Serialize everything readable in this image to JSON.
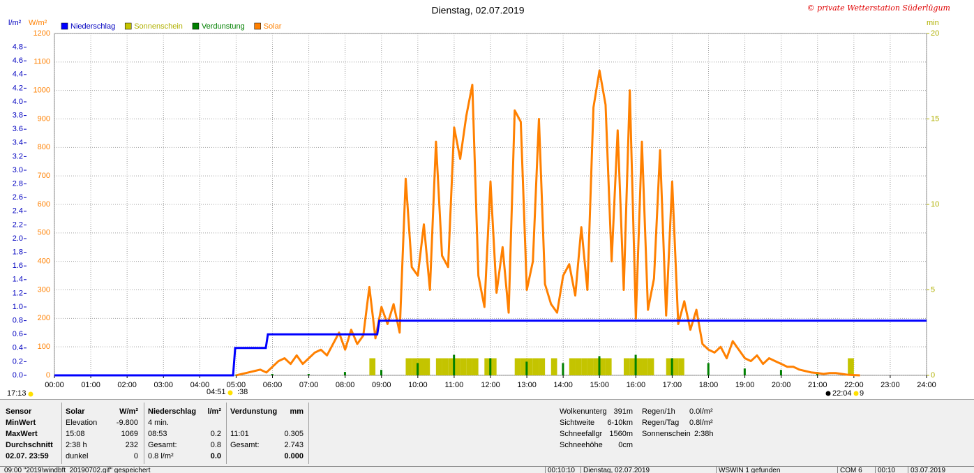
{
  "chart_data": {
    "type": "line",
    "title": "Dienstag, 02.07.2019",
    "credit": "© private Wetterstation Süderlügum",
    "ylabel": "W/m²",
    "y2label": "l/m²",
    "y3label": "min",
    "grid": true,
    "xlim": [
      0,
      24
    ],
    "xticks": [
      {
        "value": 0,
        "label": "00:00"
      },
      {
        "value": 1,
        "label": "01:00"
      },
      {
        "value": 2,
        "label": "02:00"
      },
      {
        "value": 3,
        "label": "03:00"
      },
      {
        "value": 4,
        "label": "04:00"
      },
      {
        "value": 5,
        "label": "05:00"
      },
      {
        "value": 6,
        "label": "06:00"
      },
      {
        "value": 7,
        "label": "07:00"
      },
      {
        "value": 8,
        "label": "08:00"
      },
      {
        "value": 9,
        "label": "09:00"
      },
      {
        "value": 10,
        "label": "10:00"
      },
      {
        "value": 11,
        "label": "11:00"
      },
      {
        "value": 12,
        "label": "12:00"
      },
      {
        "value": 13,
        "label": "13:00"
      },
      {
        "value": 14,
        "label": "14:00"
      },
      {
        "value": 15,
        "label": "15:00"
      },
      {
        "value": 16,
        "label": "16:00"
      },
      {
        "value": 17,
        "label": "17:00"
      },
      {
        "value": 18,
        "label": "18:00"
      },
      {
        "value": 19,
        "label": "19:00"
      },
      {
        "value": 20,
        "label": "20:00"
      },
      {
        "value": 21,
        "label": "21:00"
      },
      {
        "value": 22,
        "label": "22:00"
      },
      {
        "value": 23,
        "label": "23:00"
      },
      {
        "value": 24,
        "label": "24:00"
      }
    ],
    "ylim": [
      0,
      1200
    ],
    "yticks": [
      0,
      100,
      200,
      300,
      400,
      500,
      600,
      700,
      800,
      900,
      1000,
      1100,
      1200
    ],
    "y2lim": [
      0,
      5
    ],
    "y2ticks": [
      {
        "value": 0,
        "label": "0.0"
      },
      {
        "value": 0.2,
        "label": "0.2"
      },
      {
        "value": 0.4,
        "label": "0.4"
      },
      {
        "value": 0.6,
        "label": "0.6"
      },
      {
        "value": 0.8,
        "label": "0.8"
      },
      {
        "value": 1,
        "label": "1.0"
      },
      {
        "value": 1.2,
        "label": "1.2"
      },
      {
        "value": 1.4,
        "label": "1.4"
      },
      {
        "value": 1.6,
        "label": "1.6"
      },
      {
        "value": 1.8,
        "label": "1.8"
      },
      {
        "value": 2,
        "label": "2.0"
      },
      {
        "value": 2.2,
        "label": "2.2"
      },
      {
        "value": 2.4,
        "label": "2.4"
      },
      {
        "value": 2.6,
        "label": "2.6"
      },
      {
        "value": 2.8,
        "label": "2.8"
      },
      {
        "value": 3,
        "label": "3.0"
      },
      {
        "value": 3.2,
        "label": "3.2"
      },
      {
        "value": 3.4,
        "label": "3.4"
      },
      {
        "value": 3.6,
        "label": "3.6"
      },
      {
        "value": 3.8,
        "label": "3.8"
      },
      {
        "value": 4,
        "label": "4.0"
      },
      {
        "value": 4.2,
        "label": "4.2"
      },
      {
        "value": 4.4,
        "label": "4.4"
      },
      {
        "value": 4.6,
        "label": "4.6"
      },
      {
        "value": 4.8,
        "label": "4.8"
      }
    ],
    "y3lim": [
      0,
      20
    ],
    "y3ticks": [
      0,
      5,
      10,
      15,
      20
    ],
    "series": [
      {
        "name": "Niederschlag",
        "color": "#0000ff",
        "type": "step",
        "axis": "y2",
        "x": [
          "00:00",
          "04:55",
          "05:49",
          "08:53"
        ],
        "values": [
          0,
          0.4,
          0.6,
          0.8
        ]
      },
      {
        "name": "Sonnenschein",
        "color": "#c4c400",
        "type": "bar",
        "axis": "y3",
        "x": [
          "08:40",
          "09:40",
          "09:50",
          "10:00",
          "10:10",
          "10:30",
          "10:40",
          "10:50",
          "11:00",
          "11:10",
          "11:20",
          "11:30",
          "11:50",
          "12:00",
          "12:40",
          "12:50",
          "13:00",
          "13:10",
          "13:20",
          "13:40",
          "14:10",
          "14:20",
          "14:30",
          "14:40",
          "14:50",
          "15:00",
          "15:10",
          "15:40",
          "15:50",
          "16:00",
          "16:10",
          "16:20",
          "16:50",
          "17:00",
          "17:10",
          "21:50"
        ],
        "values": [
          1,
          1,
          1,
          1,
          1,
          1,
          1,
          1,
          1,
          1,
          1,
          1,
          1,
          1,
          1,
          1,
          1,
          1,
          1,
          1,
          1,
          1,
          1,
          1,
          1,
          1,
          1,
          1,
          1,
          1,
          1,
          1,
          1,
          1,
          1,
          1
        ]
      },
      {
        "name": "Verdunstung",
        "color": "#008000",
        "type": "bar",
        "axis": "y2",
        "x": [
          "04:58",
          "05:58",
          "06:58",
          "07:58",
          "08:58",
          "09:58",
          "10:58",
          "11:58",
          "12:58",
          "13:58",
          "14:58",
          "15:58",
          "16:58",
          "17:58",
          "18:58",
          "19:58",
          "20:58",
          "21:58"
        ],
        "values": [
          0.01,
          0.02,
          0.02,
          0.05,
          0.08,
          0.18,
          0.3,
          0.25,
          0.2,
          0.18,
          0.28,
          0.3,
          0.25,
          0.18,
          0.1,
          0.08,
          0.05,
          0.01
        ]
      },
      {
        "name": "Solar",
        "color": "#ff8000",
        "type": "line",
        "axis": "y",
        "x": [
          "05:00",
          "05:10",
          "05:20",
          "05:30",
          "05:40",
          "05:50",
          "06:00",
          "06:10",
          "06:20",
          "06:30",
          "06:40",
          "06:50",
          "07:00",
          "07:10",
          "07:20",
          "07:30",
          "07:40",
          "07:50",
          "08:00",
          "08:10",
          "08:20",
          "08:30",
          "08:40",
          "08:50",
          "09:00",
          "09:10",
          "09:20",
          "09:30",
          "09:40",
          "09:50",
          "10:00",
          "10:10",
          "10:20",
          "10:30",
          "10:40",
          "10:50",
          "11:00",
          "11:10",
          "11:20",
          "11:30",
          "11:40",
          "11:50",
          "12:00",
          "12:10",
          "12:20",
          "12:30",
          "12:40",
          "12:50",
          "13:00",
          "13:10",
          "13:20",
          "13:30",
          "13:40",
          "13:50",
          "14:00",
          "14:10",
          "14:20",
          "14:30",
          "14:40",
          "14:50",
          "15:00",
          "15:10",
          "15:20",
          "15:30",
          "15:40",
          "15:50",
          "16:00",
          "16:10",
          "16:20",
          "16:30",
          "16:40",
          "16:50",
          "17:00",
          "17:10",
          "17:20",
          "17:30",
          "17:40",
          "17:50",
          "18:00",
          "18:10",
          "18:20",
          "18:30",
          "18:40",
          "18:50",
          "19:00",
          "19:10",
          "19:20",
          "19:30",
          "19:40",
          "19:50",
          "20:00",
          "20:10",
          "20:20",
          "20:30",
          "20:40",
          "20:50",
          "21:00",
          "21:10",
          "21:20",
          "21:30",
          "21:40",
          "21:50",
          "22:00",
          "22:10"
        ],
        "values": [
          0,
          5,
          10,
          15,
          20,
          10,
          30,
          50,
          60,
          40,
          70,
          40,
          60,
          80,
          90,
          70,
          110,
          150,
          90,
          160,
          110,
          140,
          310,
          130,
          240,
          180,
          250,
          150,
          690,
          380,
          350,
          530,
          300,
          820,
          420,
          380,
          870,
          760,
          910,
          1020,
          350,
          240,
          680,
          290,
          450,
          220,
          930,
          890,
          300,
          400,
          900,
          320,
          250,
          220,
          350,
          390,
          280,
          520,
          300,
          940,
          1070,
          950,
          400,
          860,
          300,
          1000,
          200,
          820,
          230,
          340,
          790,
          210,
          680,
          180,
          260,
          160,
          230,
          110,
          90,
          80,
          100,
          60,
          120,
          90,
          60,
          50,
          70,
          40,
          60,
          50,
          40,
          30,
          30,
          20,
          15,
          10,
          8,
          5,
          8,
          8,
          5,
          2,
          1,
          0
        ]
      }
    ],
    "markers": [
      "17:13",
      "04:51",
      ":38",
      "22:04",
      "9"
    ]
  },
  "panel": {
    "table": [
      [
        "Sensor",
        "Solar",
        "W/m²",
        "Niederschlag",
        "l/m²",
        "Verdunstung",
        "mm"
      ],
      [
        "MinWert",
        "Elevation",
        "-9.800",
        "4 min.",
        null,
        null,
        null
      ],
      [
        "MaxWert",
        "15:08",
        "1069",
        "08:53",
        "0.2",
        "11:01",
        "0.305"
      ],
      [
        "Durchschnitt",
        "2:38 h",
        "232",
        "Gesamt:",
        "0.8",
        "Gesamt:",
        "2.743"
      ],
      [
        "02.07. 23:59",
        "dunkel",
        "0",
        "0.8 l/m²",
        "0.0",
        null,
        "0.000"
      ]
    ],
    "info": [
      [
        "Wolkenunterg",
        "391m"
      ],
      [
        "Sichtweite",
        "6-10km"
      ],
      [
        "Schneefallgr",
        "1560m"
      ],
      [
        "Schneehöhe",
        "0cm"
      ]
    ],
    "info2": [
      [
        "Regen/1h",
        "0.0l/m²"
      ],
      [
        "Regen/Tag",
        "0.8l/m²"
      ],
      [
        "Sonnenschein",
        "2:38h"
      ]
    ]
  },
  "status_bar": [
    "09:00 \"2019\\windbft_20190702.gif\" gespeichert",
    "00:10:10",
    "Dienstag, 02.07.2019",
    "WSWIN 1 gefunden",
    "COM 6",
    "00:10",
    "03.07.2019"
  ]
}
